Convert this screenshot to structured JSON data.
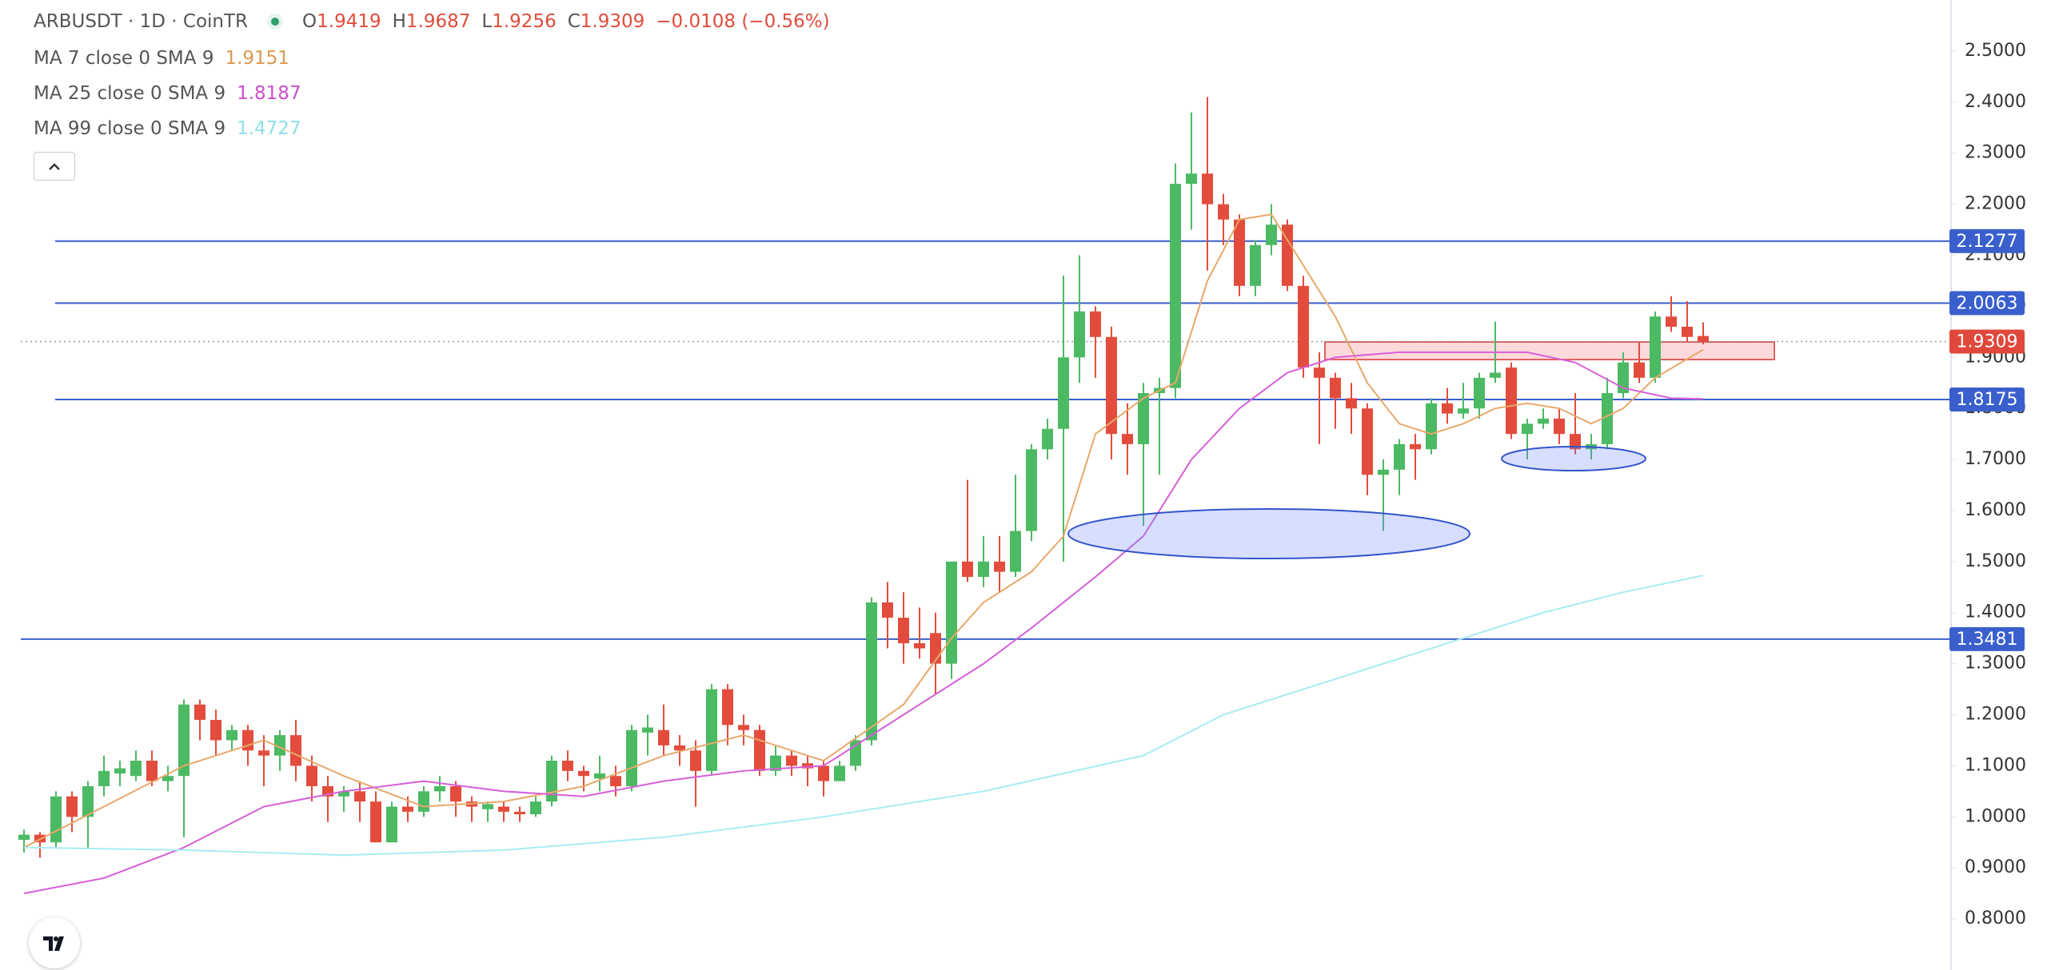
{
  "chart_data": {
    "type": "candlestick",
    "title": "ARBUSDT · 1D · CoinTR",
    "ohlc_labels": [
      "O",
      "H",
      "L",
      "C"
    ],
    "change": "−0.0108 (−0.56%)",
    "open": [
      0.955,
      0.965,
      0.95,
      1.04,
      1.0,
      1.06,
      1.085,
      1.08,
      1.11,
      1.07,
      1.08,
      1.22,
      1.19,
      1.15,
      1.17,
      1.13,
      1.12,
      1.16,
      1.1,
      1.06,
      1.04,
      1.05,
      1.03,
      0.95,
      1.02,
      1.01,
      1.05,
      1.06,
      1.03,
      1.015,
      1.02,
      1.01,
      1.005,
      1.03,
      1.11,
      1.09,
      1.075,
      1.08,
      1.06,
      1.165,
      1.17,
      1.14,
      1.13,
      1.09,
      1.25,
      1.18,
      1.17,
      1.09,
      1.12,
      1.105,
      1.1,
      1.07,
      1.1,
      1.15,
      1.42,
      1.39,
      1.34,
      1.36,
      1.3,
      1.5,
      1.47,
      1.5,
      1.48,
      1.56,
      1.72,
      1.76,
      1.9,
      1.99,
      1.94,
      1.75,
      1.73,
      1.83,
      1.84,
      2.24,
      2.26,
      2.2,
      2.17,
      2.04,
      2.12,
      2.16,
      2.04,
      1.88,
      1.86,
      1.82,
      1.8,
      1.67,
      1.68,
      1.73,
      1.72,
      1.81,
      1.79,
      1.8,
      1.86,
      1.88,
      1.75,
      1.77,
      1.78,
      1.75,
      1.72,
      1.73,
      1.83,
      1.89,
      1.86,
      1.98,
      1.96,
      1.9419
    ],
    "high": [
      0.975,
      0.97,
      1.05,
      1.05,
      1.07,
      1.12,
      1.11,
      1.13,
      1.13,
      1.1,
      1.23,
      1.23,
      1.21,
      1.18,
      1.18,
      1.16,
      1.17,
      1.19,
      1.12,
      1.08,
      1.06,
      1.07,
      1.05,
      1.03,
      1.04,
      1.06,
      1.08,
      1.07,
      1.04,
      1.03,
      1.03,
      1.02,
      1.04,
      1.12,
      1.13,
      1.1,
      1.12,
      1.1,
      1.18,
      1.2,
      1.22,
      1.16,
      1.15,
      1.26,
      1.26,
      1.2,
      1.18,
      1.14,
      1.13,
      1.12,
      1.11,
      1.11,
      1.16,
      1.43,
      1.46,
      1.44,
      1.41,
      1.4,
      1.5,
      1.66,
      1.55,
      1.55,
      1.67,
      1.73,
      1.78,
      2.06,
      2.1,
      2.0,
      1.96,
      1.81,
      1.85,
      1.86,
      2.28,
      2.38,
      2.41,
      2.22,
      2.18,
      2.13,
      2.2,
      2.17,
      2.06,
      1.91,
      1.87,
      1.85,
      1.81,
      1.7,
      1.74,
      1.75,
      1.82,
      1.84,
      1.85,
      1.87,
      1.97,
      1.89,
      1.78,
      1.8,
      1.8,
      1.83,
      1.75,
      1.86,
      1.91,
      1.93,
      1.99,
      2.02,
      2.01,
      1.9687
    ],
    "low": [
      0.93,
      0.92,
      0.94,
      0.97,
      0.94,
      1.04,
      1.06,
      1.07,
      1.06,
      1.05,
      0.96,
      1.15,
      1.12,
      1.13,
      1.1,
      1.06,
      1.09,
      1.07,
      1.03,
      0.99,
      1.01,
      0.99,
      0.95,
      0.95,
      0.99,
      1.0,
      1.03,
      1.0,
      0.99,
      0.99,
      0.99,
      0.99,
      1.0,
      1.02,
      1.07,
      1.05,
      1.05,
      1.04,
      1.05,
      1.12,
      1.12,
      1.1,
      1.02,
      1.08,
      1.14,
      1.14,
      1.08,
      1.08,
      1.08,
      1.06,
      1.04,
      1.07,
      1.09,
      1.14,
      1.33,
      1.3,
      1.31,
      1.24,
      1.27,
      1.46,
      1.45,
      1.44,
      1.47,
      1.54,
      1.7,
      1.5,
      1.85,
      1.86,
      1.7,
      1.67,
      1.57,
      1.67,
      1.82,
      2.15,
      2.07,
      2.12,
      2.02,
      2.02,
      2.1,
      2.03,
      1.86,
      1.73,
      1.76,
      1.75,
      1.63,
      1.56,
      1.63,
      1.66,
      1.71,
      1.77,
      1.78,
      1.78,
      1.85,
      1.74,
      1.7,
      1.76,
      1.73,
      1.71,
      1.7,
      1.72,
      1.82,
      1.85,
      1.85,
      1.95,
      1.93,
      1.9256
    ],
    "close": [
      0.965,
      0.95,
      1.04,
      1.0,
      1.06,
      1.09,
      1.095,
      1.11,
      1.07,
      1.08,
      1.22,
      1.19,
      1.15,
      1.17,
      1.13,
      1.12,
      1.16,
      1.1,
      1.06,
      1.04,
      1.05,
      1.03,
      0.95,
      1.02,
      1.01,
      1.05,
      1.06,
      1.03,
      1.02,
      1.025,
      1.01,
      1.005,
      1.03,
      1.11,
      1.09,
      1.08,
      1.085,
      1.06,
      1.17,
      1.175,
      1.14,
      1.13,
      1.09,
      1.25,
      1.18,
      1.17,
      1.09,
      1.12,
      1.1,
      1.095,
      1.07,
      1.1,
      1.15,
      1.42,
      1.39,
      1.34,
      1.33,
      1.3,
      1.5,
      1.47,
      1.5,
      1.48,
      1.56,
      1.72,
      1.76,
      1.9,
      1.99,
      1.94,
      1.75,
      1.73,
      1.83,
      1.84,
      2.24,
      2.26,
      2.2,
      2.17,
      2.04,
      2.12,
      2.16,
      2.04,
      1.88,
      1.86,
      1.82,
      1.8,
      1.67,
      1.68,
      1.73,
      1.72,
      1.81,
      1.79,
      1.8,
      1.86,
      1.87,
      1.75,
      1.77,
      1.78,
      1.75,
      1.72,
      1.73,
      1.83,
      1.89,
      1.86,
      1.98,
      1.96,
      1.94,
      1.9309
    ],
    "colors": {
      "up": "#4cb963",
      "down": "#e34c3c"
    },
    "series": [
      {
        "name": "MA 7 close 0 SMA 9",
        "color": "#e8a86a",
        "x": [
          0,
          5,
          10,
          15,
          20,
          25,
          30,
          35,
          40,
          45,
          50,
          55,
          58,
          60,
          63,
          65,
          67,
          70,
          72,
          74,
          76,
          78,
          80,
          82,
          84,
          86,
          88,
          90,
          92,
          94,
          96,
          98,
          100,
          102,
          105
        ],
        "values": [
          0.94,
          1.02,
          1.1,
          1.15,
          1.08,
          1.02,
          1.03,
          1.06,
          1.12,
          1.16,
          1.11,
          1.22,
          1.35,
          1.42,
          1.48,
          1.55,
          1.75,
          1.82,
          1.85,
          2.05,
          2.17,
          2.18,
          2.08,
          1.98,
          1.85,
          1.77,
          1.75,
          1.77,
          1.8,
          1.81,
          1.8,
          1.77,
          1.8,
          1.86,
          1.9151
        ]
      },
      {
        "name": "MA 25 close 0 SMA 9",
        "color": "#d65fd8",
        "x": [
          0,
          5,
          10,
          15,
          20,
          25,
          30,
          35,
          40,
          45,
          50,
          55,
          60,
          63,
          65,
          67,
          70,
          73,
          76,
          79,
          82,
          86,
          90,
          94,
          97,
          100,
          103,
          105
        ],
        "values": [
          0.85,
          0.88,
          0.94,
          1.02,
          1.05,
          1.07,
          1.05,
          1.04,
          1.07,
          1.09,
          1.1,
          1.2,
          1.3,
          1.37,
          1.42,
          1.47,
          1.55,
          1.7,
          1.8,
          1.87,
          1.9,
          1.91,
          1.91,
          1.91,
          1.89,
          1.84,
          1.82,
          1.8187
        ]
      },
      {
        "name": "MA 99 close 0 SMA 9",
        "color": "#a8ecf2",
        "x": [
          0,
          10,
          20,
          30,
          40,
          50,
          60,
          70,
          75,
          80,
          85,
          90,
          95,
          100,
          105
        ],
        "values": [
          0.94,
          0.935,
          0.925,
          0.935,
          0.96,
          1.0,
          1.05,
          1.12,
          1.2,
          1.25,
          1.3,
          1.35,
          1.4,
          1.44,
          1.4727
        ]
      }
    ],
    "levels": [
      2.1277,
      2.0063,
      1.8175,
      1.3481
    ],
    "ylim": [
      0.7,
      2.6
    ],
    "yticks": [
      {
        "value": 0.8,
        "label": "0.8000"
      },
      {
        "value": 0.9,
        "label": "0.9000"
      },
      {
        "value": 1.0,
        "label": "1.0000"
      },
      {
        "value": 1.1,
        "label": "1.1000"
      },
      {
        "value": 1.2,
        "label": "1.2000"
      },
      {
        "value": 1.3,
        "label": "1.3000"
      },
      {
        "value": 1.4,
        "label": "1.4000"
      },
      {
        "value": 1.5,
        "label": "1.5000"
      },
      {
        "value": 1.6,
        "label": "1.6000"
      },
      {
        "value": 1.7,
        "label": "1.7000"
      },
      {
        "value": 1.8,
        "label": "1.8000"
      },
      {
        "value": 1.9,
        "label": "1.9000"
      },
      {
        "value": 2.0,
        "label": "2.0000"
      },
      {
        "value": 2.1,
        "label": "2.1000"
      },
      {
        "value": 2.2,
        "label": "2.2000"
      },
      {
        "value": 2.3,
        "label": "2.3000"
      },
      {
        "value": 2.4,
        "label": "2.4000"
      },
      {
        "value": 2.5,
        "label": "2.5000"
      }
    ]
  }
}
